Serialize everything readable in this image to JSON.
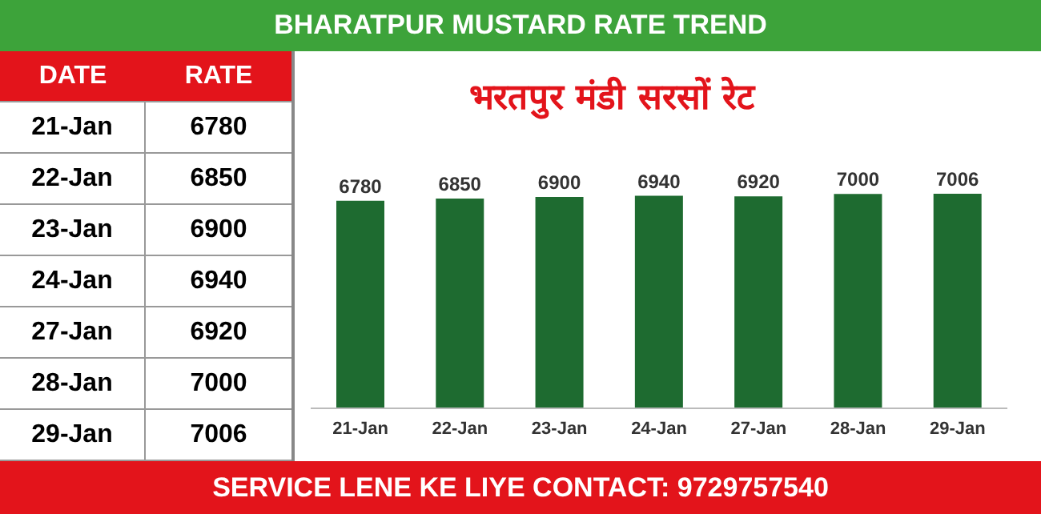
{
  "chart_data": [
    {
      "type": "other",
      "title": "BHARATPUR MUSTARD RATE TREND",
      "categories": [
        "21-Jan",
        "22-Jan",
        "23-Jan",
        "24-Jan",
        "27-Jan",
        "28-Jan",
        "29-Jan"
      ],
      "values": [
        6780,
        6850,
        6900,
        6940,
        6920,
        7000,
        7006
      ],
      "data_labels": true,
      "annotations": [
        "DATE",
        "RATE"
      ]
    },
    {
      "type": "bar",
      "title": "भरतपुर मंडी सरसों रेट",
      "categories": [
        "21-Jan",
        "22-Jan",
        "23-Jan",
        "24-Jan",
        "27-Jan",
        "28-Jan",
        "29-Jan"
      ],
      "values": [
        6780,
        6850,
        6900,
        6940,
        6920,
        7000,
        7006
      ],
      "color": "#1e6b30",
      "data_labels": true,
      "annotations": [
        "SERVICE LENE KE LIYE CONTACT: 9729757540"
      ]
    }
  ]
}
